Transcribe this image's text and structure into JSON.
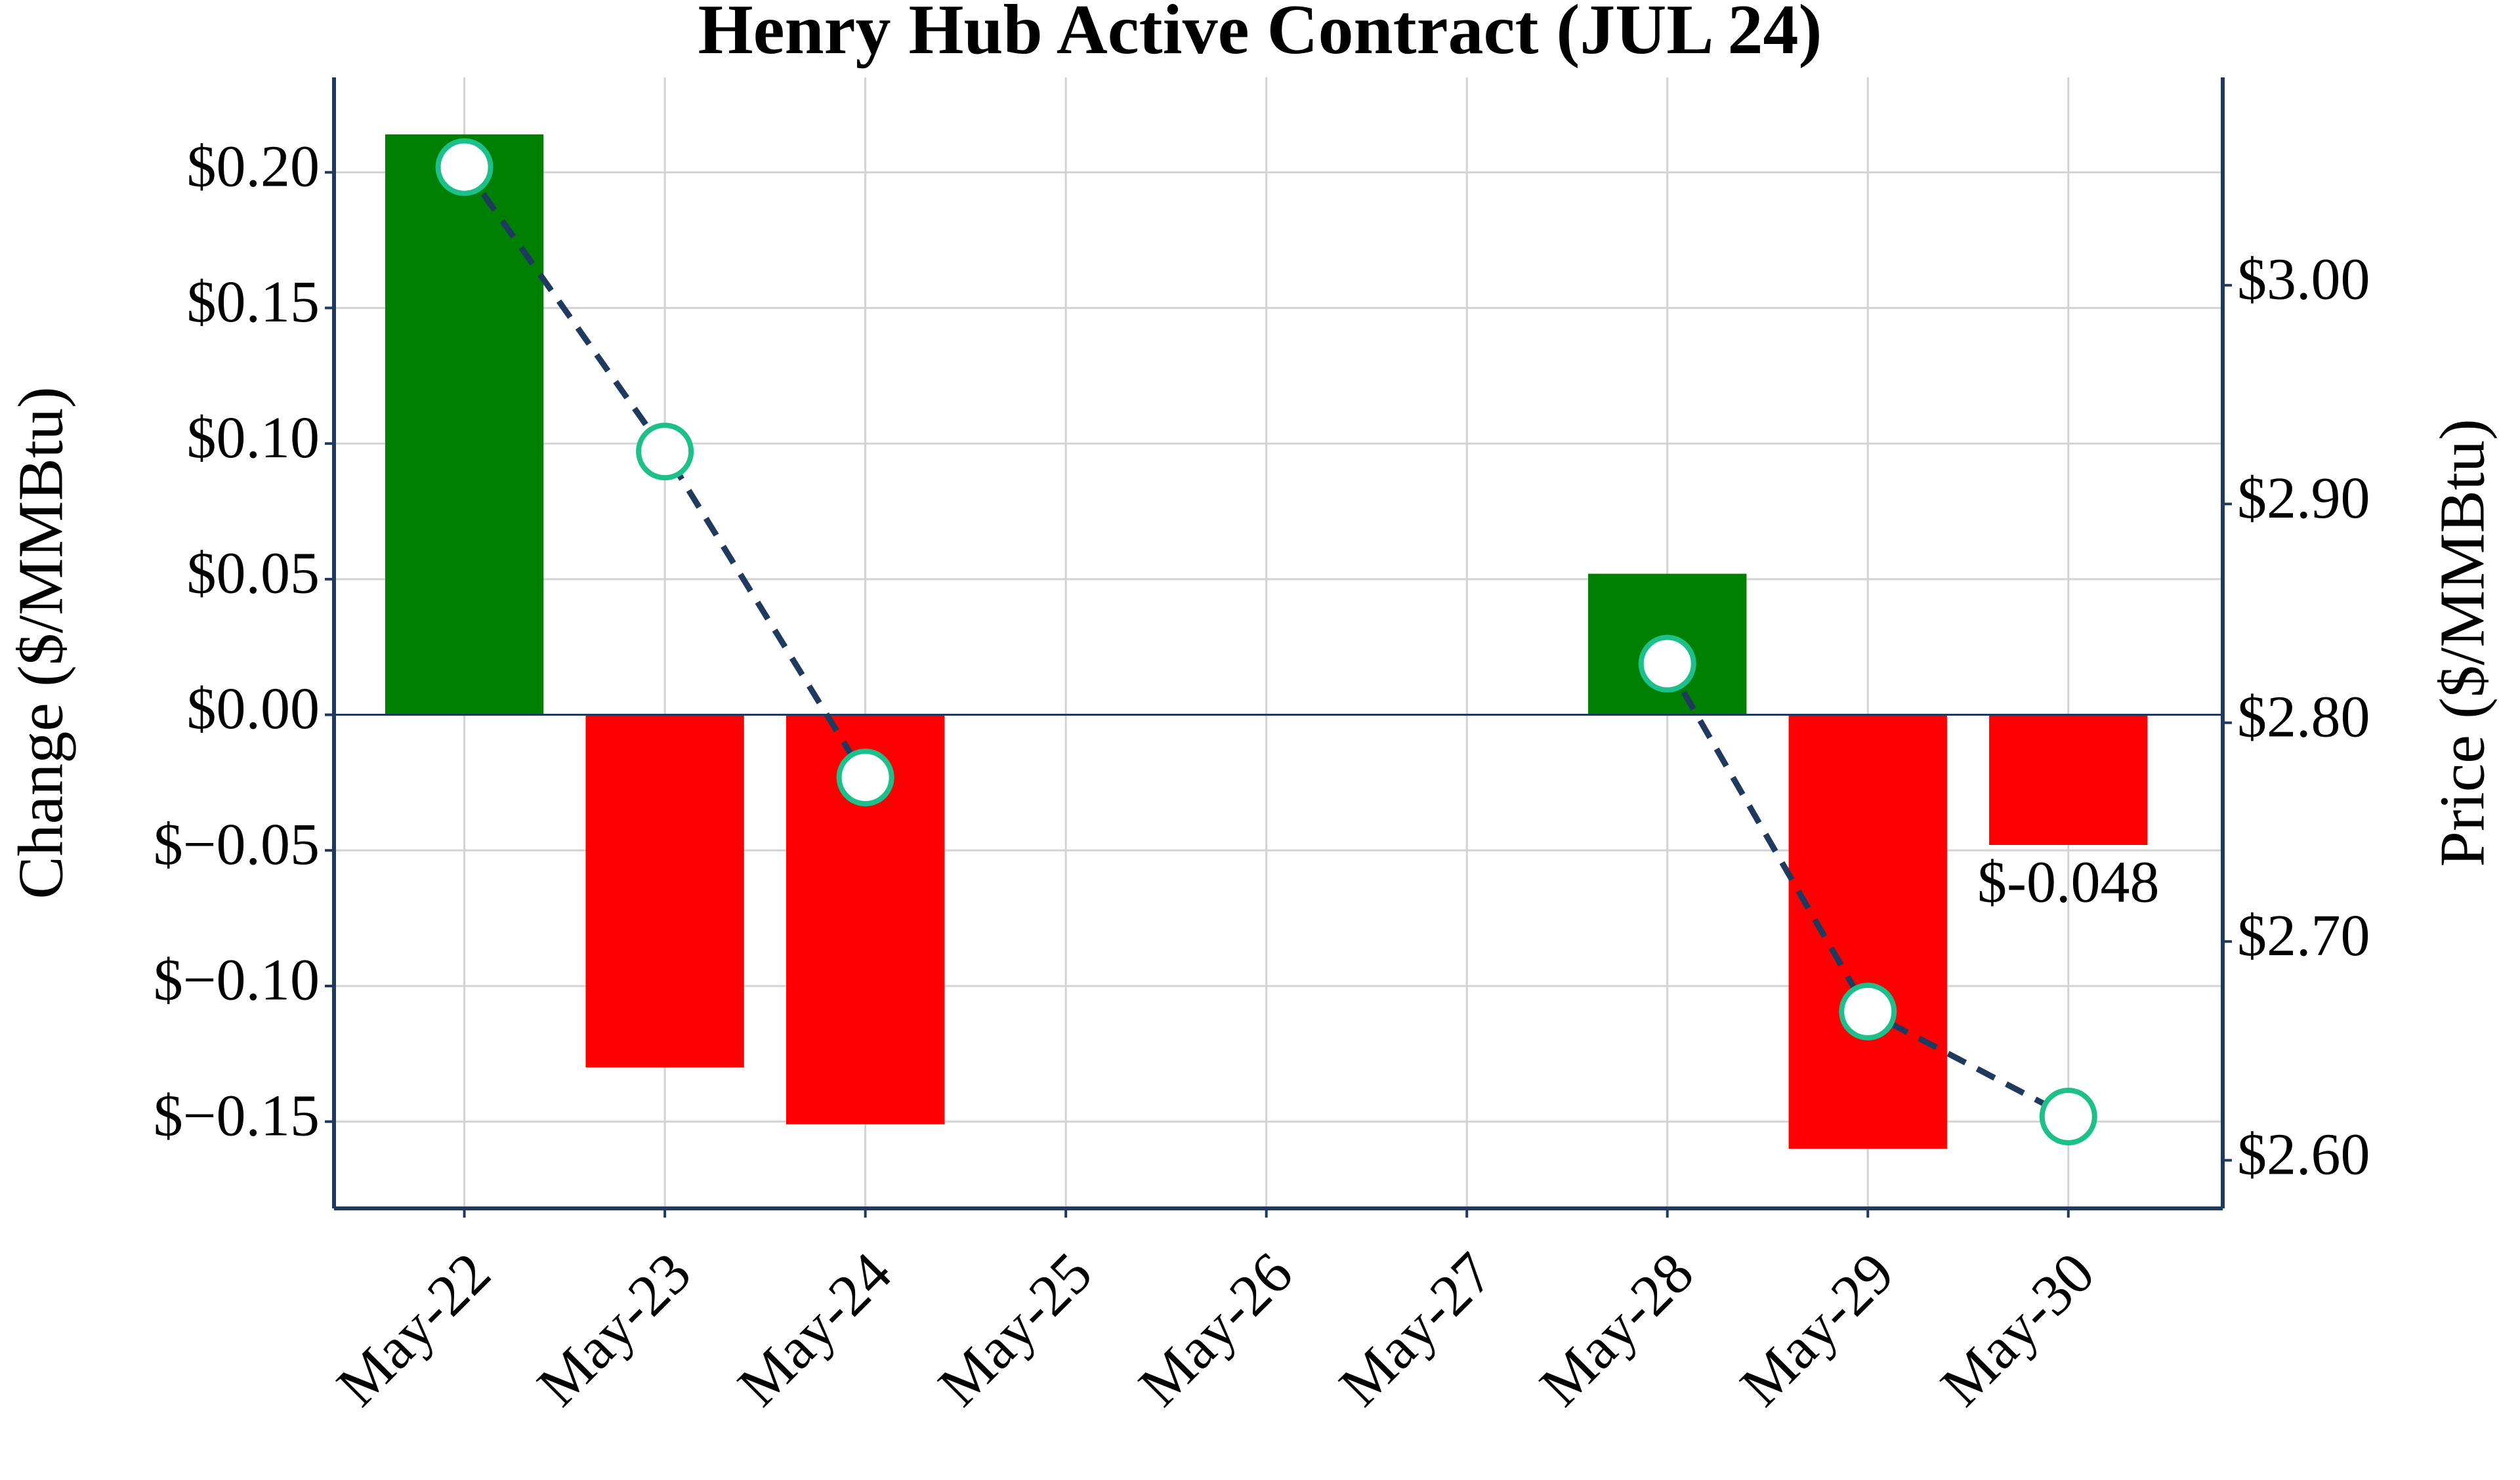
{
  "chart_data": {
    "type": "bar",
    "title": "Henry Hub Active Contract (JUL 24)",
    "y_label": "Change ($/MMBtu)",
    "y2_label": "Price ($/MMBtu)",
    "categories": [
      "May-22",
      "May-23",
      "May-24",
      "May-25",
      "May-26",
      "May-27",
      "May-28",
      "May-29",
      "May-30"
    ],
    "series": [
      {
        "type": "bar",
        "positive_color": "#008000",
        "negative_color": "#ff0000",
        "values": [
          0.214,
          -0.13,
          -0.151,
          null,
          null,
          null,
          0.052,
          -0.16,
          -0.048
        ],
        "value_labels": [
          null,
          null,
          null,
          null,
          null,
          null,
          null,
          null,
          "$-0.048"
        ]
      },
      {
        "type": "line",
        "axis": "y2",
        "color": "#1f3a5f",
        "marker_color": "#1dbf8a",
        "values": [
          3.054,
          2.924,
          2.775,
          null,
          null,
          null,
          2.827,
          2.668,
          2.62
        ]
      }
    ],
    "ylim": [
      -0.182,
      0.235
    ],
    "yticks": [
      {
        "value": -0.15,
        "label": "$−0.15"
      },
      {
        "value": -0.1,
        "label": "$−0.10"
      },
      {
        "value": -0.05,
        "label": "$−0.05"
      },
      {
        "value": 0.0,
        "label": "$0.00"
      },
      {
        "value": 0.05,
        "label": "$0.05"
      },
      {
        "value": 0.1,
        "label": "$0.10"
      },
      {
        "value": 0.15,
        "label": "$0.15"
      },
      {
        "value": 0.2,
        "label": "$0.20"
      }
    ],
    "y2lim": [
      2.578,
      3.095
    ],
    "y2ticks": [
      {
        "value": 2.6,
        "label": "$2.60"
      },
      {
        "value": 2.7,
        "label": "$2.70"
      },
      {
        "value": 2.8,
        "label": "$2.80"
      },
      {
        "value": 2.9,
        "label": "$2.90"
      },
      {
        "value": 3.0,
        "label": "$3.00"
      }
    ],
    "grid": true,
    "spine_color": "#1f3a5f"
  }
}
